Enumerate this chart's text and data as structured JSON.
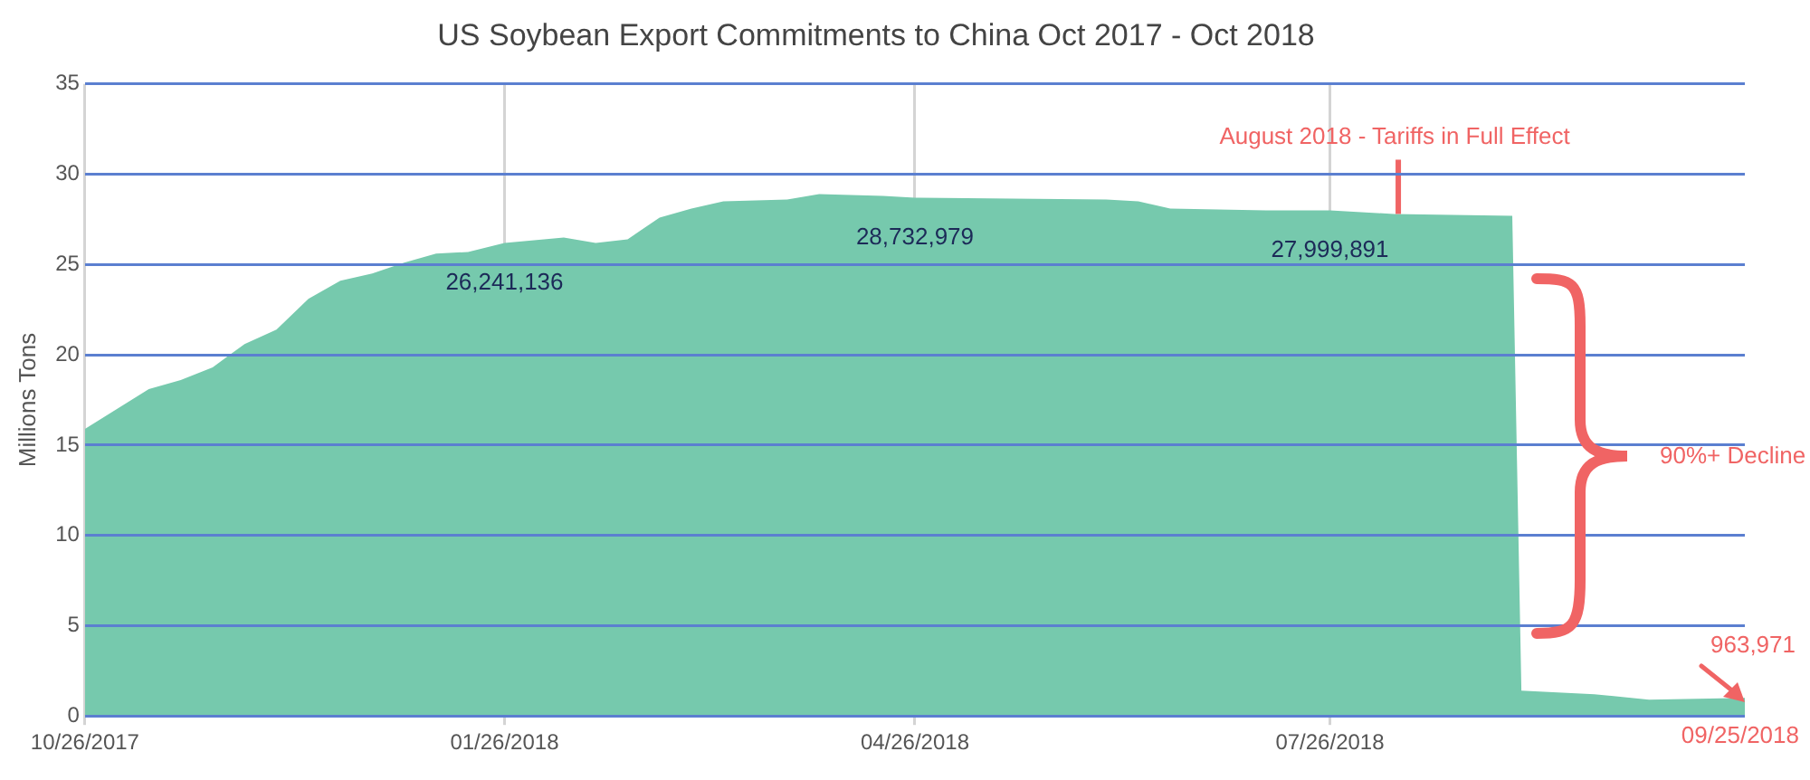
{
  "chart_data": {
    "type": "area",
    "title": "US Soybean Export Commitments to China Oct 2017 - Oct 2018",
    "ylabel": "Millions Tons",
    "x": [
      "2017-10-26",
      "2017-11-09",
      "2017-11-16",
      "2017-11-23",
      "2017-11-30",
      "2017-12-07",
      "2017-12-14",
      "2017-12-21",
      "2017-12-28",
      "2018-01-04",
      "2018-01-11",
      "2018-01-18",
      "2018-01-26",
      "2018-02-08",
      "2018-02-15",
      "2018-02-22",
      "2018-03-01",
      "2018-03-08",
      "2018-03-15",
      "2018-03-29",
      "2018-04-05",
      "2018-04-19",
      "2018-04-26",
      "2018-06-07",
      "2018-06-14",
      "2018-06-21",
      "2018-07-12",
      "2018-07-26",
      "2018-08-09",
      "2018-09-04",
      "2018-09-06",
      "2018-09-22",
      "2018-10-04",
      "2018-10-25"
    ],
    "series": [
      {
        "color": "#76c9ad",
        "values": [
          15.9,
          18.1,
          18.6,
          19.3,
          20.6,
          21.4,
          23.1,
          24.1,
          24.5,
          25.1,
          25.6,
          25.7,
          26.2,
          26.5,
          26.2,
          26.4,
          27.6,
          28.1,
          28.5,
          28.6,
          28.9,
          28.8,
          28.7,
          28.6,
          28.5,
          28.1,
          28.0,
          28.0,
          27.8,
          27.7,
          1.4,
          1.2,
          0.9,
          1.0
        ]
      }
    ],
    "xlim": [
      "2017-10-26",
      "2018-10-25"
    ],
    "xticks": [
      {
        "value": "2017-10-26",
        "label": "10/26/2017"
      },
      {
        "value": "2018-01-26",
        "label": "01/26/2018"
      },
      {
        "value": "2018-04-26",
        "label": "04/26/2018"
      },
      {
        "value": "2018-07-26",
        "label": "07/26/2018"
      }
    ],
    "ylim": [
      0,
      35
    ],
    "yticks": [
      0,
      5,
      10,
      15,
      20,
      25,
      30,
      35
    ],
    "grid": true,
    "annotations": [
      {
        "text": "August 2018 - Tariffs in Full Effect",
        "x": "2018-08-10",
        "y": 27.8
      },
      "90%+ Decline",
      {
        "text": "963,971",
        "x": "2018-10-25",
        "y": 1.0
      },
      "09/25/2018",
      {
        "text": "26,241,136",
        "x": "2018-01-26",
        "y": 26.2
      },
      {
        "text": "28,732,979",
        "x": "2018-04-26",
        "y": 28.7
      },
      {
        "text": "27,999,891",
        "x": "2018-07-26",
        "y": 28.0
      }
    ]
  }
}
